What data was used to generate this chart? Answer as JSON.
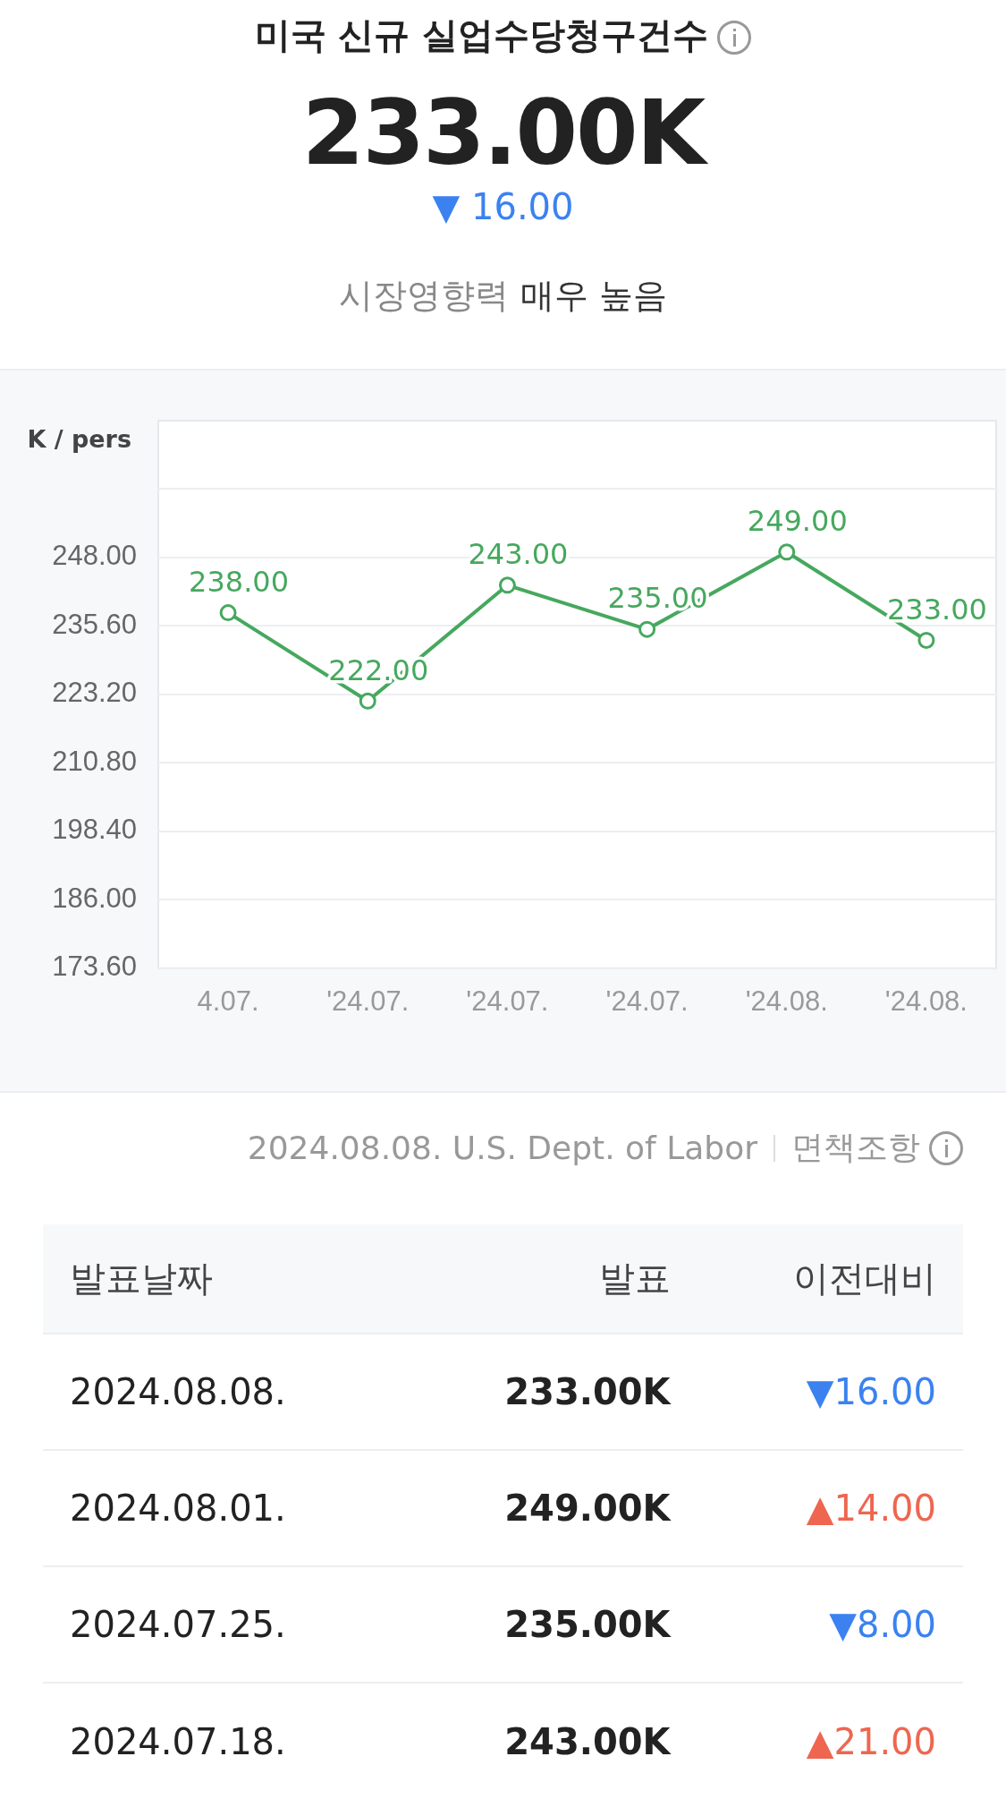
{
  "chart_data": [
    {
      "type": "other",
      "title": "미국 신규 실업수당청구건수",
      "annotations": [
        "233.00K",
        "▼ 16.00",
        "시장영향력",
        "매우 높음"
      ]
    },
    {
      "type": "line",
      "ylabel": "K / pers",
      "categories": [
        "4.07.",
        "'24.07.",
        "'24.07.",
        "'24.07.",
        "'24.08.",
        "'24.08."
      ],
      "series": [
        {
          "color": "#46a85e",
          "values": [
            238,
            222,
            243,
            235,
            249,
            233
          ],
          "value_labels": [
            "238.00",
            "222.00",
            "243.00",
            "235.00",
            "249.00",
            "233.00"
          ]
        }
      ],
      "ylim": [
        173.6,
        272.8
      ],
      "yticks": [
        {
          "value": 173.6,
          "label": "173.60"
        },
        {
          "value": 186,
          "label": "186.00"
        },
        {
          "value": 198.4,
          "label": "198.40"
        },
        {
          "value": 210.8,
          "label": "210.80"
        },
        {
          "value": 223.2,
          "label": "223.20"
        },
        {
          "value": 235.6,
          "label": "235.60"
        },
        {
          "value": 248,
          "label": "248.00"
        },
        {
          "value": 260.4,
          "label": null
        }
      ],
      "grid": "y",
      "marker": "circle",
      "legend": false,
      "annotations": [
        "2024.08.08. U.S. Dept. of Labor",
        "면책조항"
      ]
    },
    {
      "type": "other",
      "annotations": [
        "발표날짜",
        "발표",
        "이전대비",
        "2024.08.08.",
        "233.00K",
        "▼16.00",
        "2024.08.01.",
        "249.00K",
        "▲14.00",
        "2024.07.25.",
        "235.00K",
        "▼8.00",
        "2024.07.18.",
        "243.00K",
        "▲21.00"
      ]
    }
  ]
}
